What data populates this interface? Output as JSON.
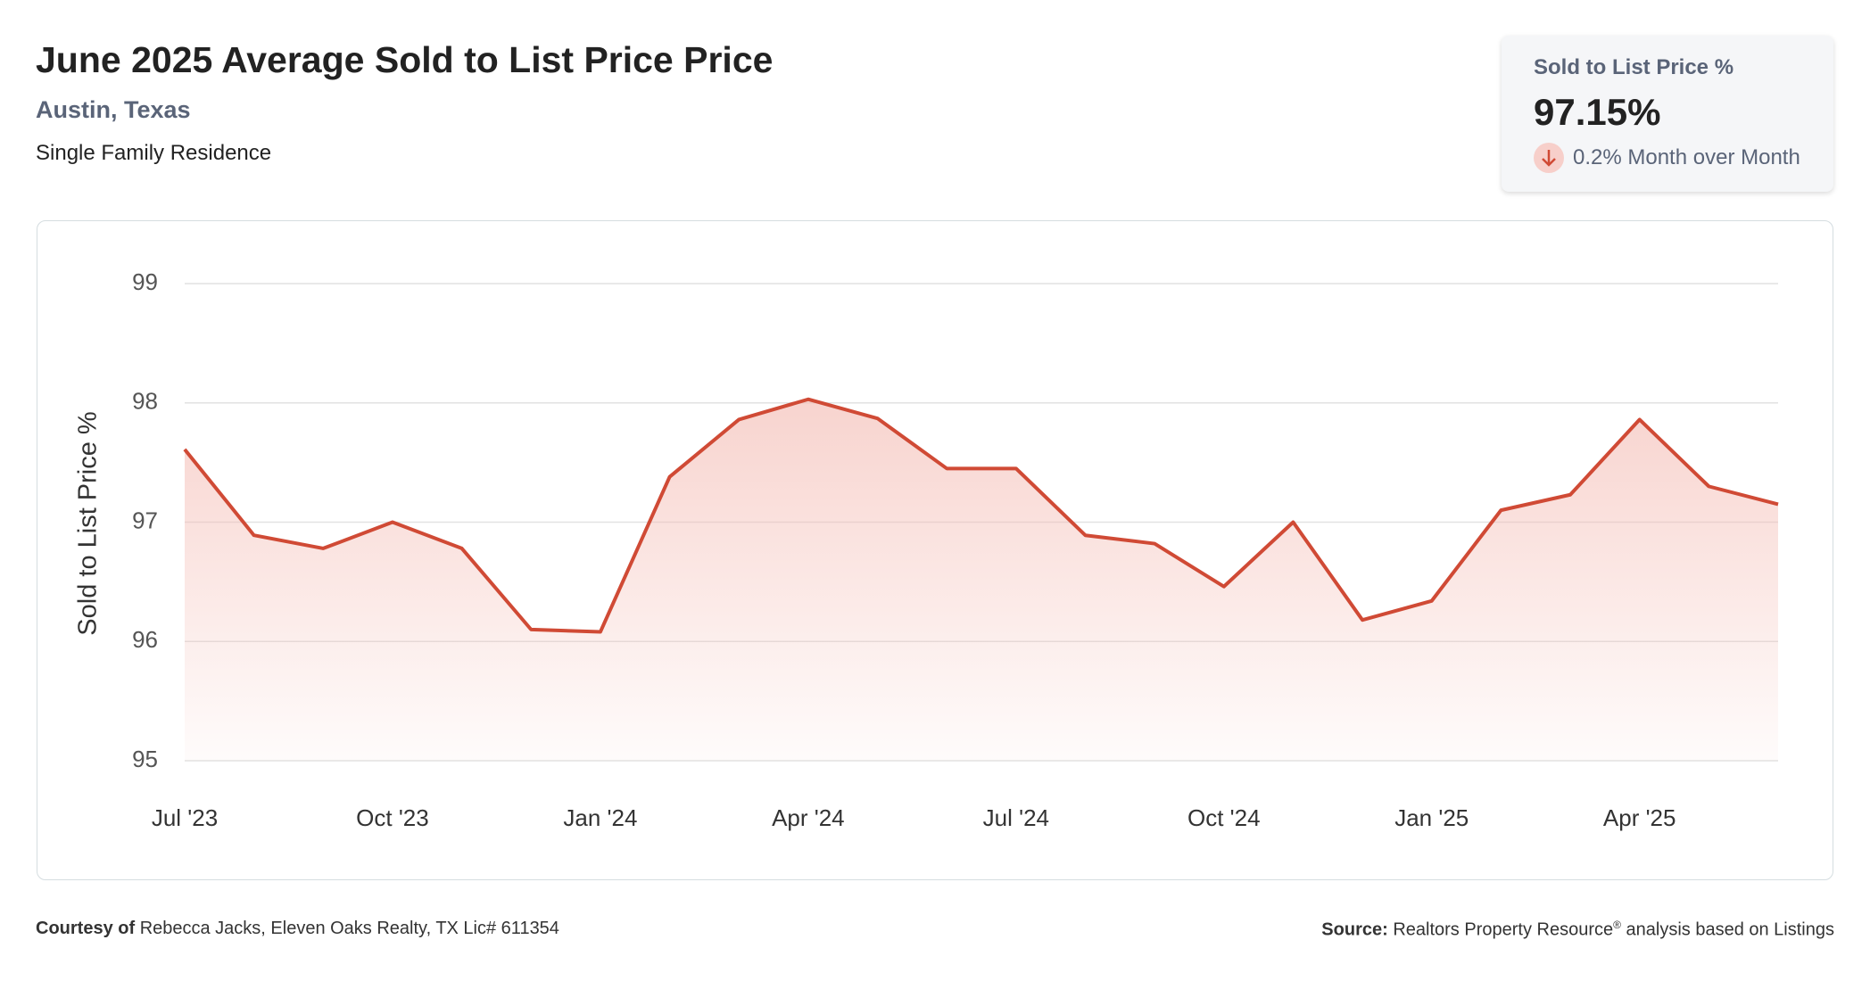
{
  "header": {
    "title": "June 2025 Average Sold to List Price Price",
    "subtitle": "Austin, Texas",
    "property_type": "Single Family Residence"
  },
  "kpi": {
    "label": "Sold to List Price %",
    "value": "97.15%",
    "change": "0.2% Month over Month"
  },
  "chart_data": {
    "type": "line",
    "y_label": "Sold to List Price %",
    "categories": [
      "Jul '23",
      null,
      null,
      "Oct '23",
      null,
      null,
      "Jan '24",
      null,
      null,
      "Apr '24",
      null,
      null,
      "Jul '24",
      null,
      null,
      "Oct '24",
      null,
      null,
      "Jan '25",
      null,
      null,
      "Apr '25",
      null,
      null
    ],
    "series": [
      {
        "name": "Sold to List Price %",
        "color": "#d04a35",
        "values": [
          97.61,
          96.89,
          96.78,
          97.0,
          96.78,
          96.1,
          96.08,
          97.38,
          97.86,
          98.03,
          97.87,
          97.45,
          97.45,
          96.89,
          96.82,
          96.46,
          97.0,
          96.18,
          96.34,
          97.1,
          97.23,
          97.86,
          97.3,
          97.15
        ]
      }
    ],
    "ylim": [
      95,
      99
    ],
    "yticks": [
      95,
      96,
      97,
      98,
      99
    ],
    "grid": true,
    "fill_area": true
  },
  "footer": {
    "courtesy_label": "Courtesy of",
    "courtesy": "Rebecca Jacks, Eleven Oaks Realty, TX Lic# 611354",
    "source_label": "Source:",
    "source": "Realtors Property Resource",
    "source_mark": "®",
    "source_tail": "analysis based on Listings"
  }
}
